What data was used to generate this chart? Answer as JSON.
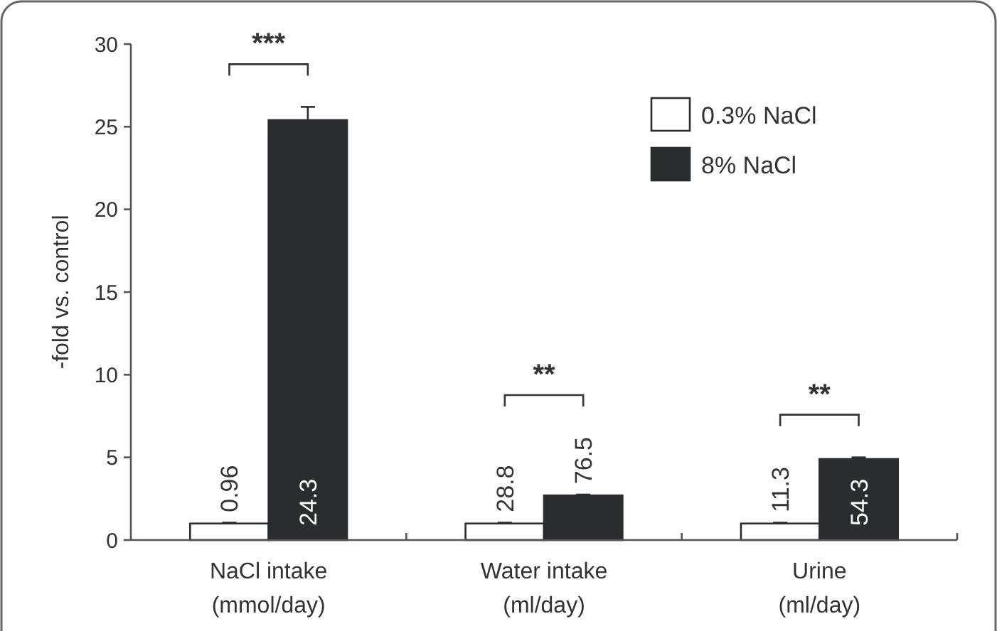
{
  "chart_data": {
    "type": "bar",
    "ylabel": "-fold vs. control",
    "categories": [
      "NaCl intake\n(mmol/day)",
      "Water intake\n(ml/day)",
      "Urine\n(ml/day)"
    ],
    "series": [
      {
        "name": "0.3% NaCl",
        "color": "#ffffff",
        "values": [
          1,
          1,
          1
        ],
        "errors": [
          0.05,
          0.05,
          0.05
        ]
      },
      {
        "name": "8% NaCl",
        "color": "#2b2c30",
        "values": [
          25.4,
          2.7,
          4.9
        ],
        "errors": [
          0.8,
          0.05,
          0.1
        ]
      }
    ],
    "ylim": [
      0,
      30
    ],
    "yticks": [
      0,
      5,
      10,
      15,
      20,
      25,
      30
    ],
    "grid": false,
    "legend": "top right",
    "annotations": [
      "***",
      "**",
      "**",
      "0.96",
      "24.3",
      "28.8",
      "76.5",
      "11.3",
      "54.3"
    ]
  }
}
